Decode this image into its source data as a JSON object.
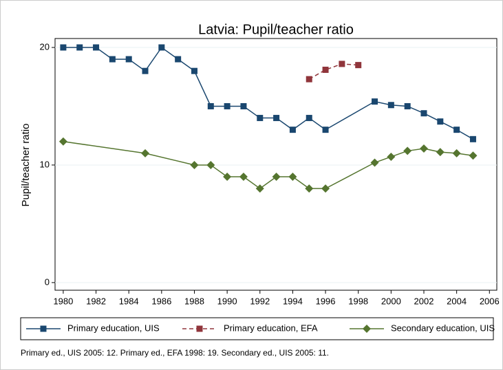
{
  "chart_data": {
    "type": "line",
    "title": "Latvia: Pupil/teacher ratio",
    "y_label": "Pupil/teacher ratio",
    "note": "Primary ed., UIS 2005: 12. Primary ed., EFA 1998: 19. Secondary ed., UIS 2005: 11.",
    "xlim": [
      1979.5,
      2006.45
    ],
    "xticks": [
      1980,
      1982,
      1984,
      1986,
      1988,
      1990,
      1992,
      1994,
      1996,
      1998,
      2000,
      2002,
      2004,
      2006
    ],
    "ylim": [
      -0.65,
      20.76
    ],
    "yticks": [
      0,
      10,
      20
    ],
    "grid": true,
    "series": [
      {
        "name": "Primary education, UIS",
        "color": "#1a476f",
        "marker": "square",
        "dash": false,
        "x": [
          1980,
          1981,
          1982,
          1983,
          1984,
          1985,
          1986,
          1987,
          1988,
          1989,
          1990,
          1991,
          1992,
          1993,
          1994,
          1995,
          1996,
          1999,
          2000,
          2001,
          2002,
          2003,
          2004,
          2005
        ],
        "values": [
          20,
          20,
          20,
          19,
          19,
          18,
          20,
          19,
          18,
          15,
          15,
          15,
          14,
          14,
          13,
          14,
          13,
          15.4,
          15.1,
          15.0,
          14.4,
          13.7,
          13.0,
          12.2
        ]
      },
      {
        "name": "Primary education, EFA",
        "color": "#90353b",
        "marker": "square",
        "dash": true,
        "x": [
          1995,
          1996,
          1997,
          1998
        ],
        "values": [
          17.3,
          18.1,
          18.6,
          18.5
        ]
      },
      {
        "name": "Secondary education, UIS",
        "color": "#55752f",
        "marker": "diamond",
        "dash": false,
        "x": [
          1980,
          1985,
          1988,
          1989,
          1990,
          1991,
          1992,
          1993,
          1994,
          1995,
          1996,
          1999,
          2000,
          2001,
          2002,
          2003,
          2004,
          2005
        ],
        "values": [
          12,
          11,
          10,
          10,
          9,
          9,
          8,
          9,
          9,
          8,
          8,
          10.2,
          10.7,
          11.2,
          11.4,
          11.1,
          11.0,
          10.8
        ]
      }
    ]
  }
}
